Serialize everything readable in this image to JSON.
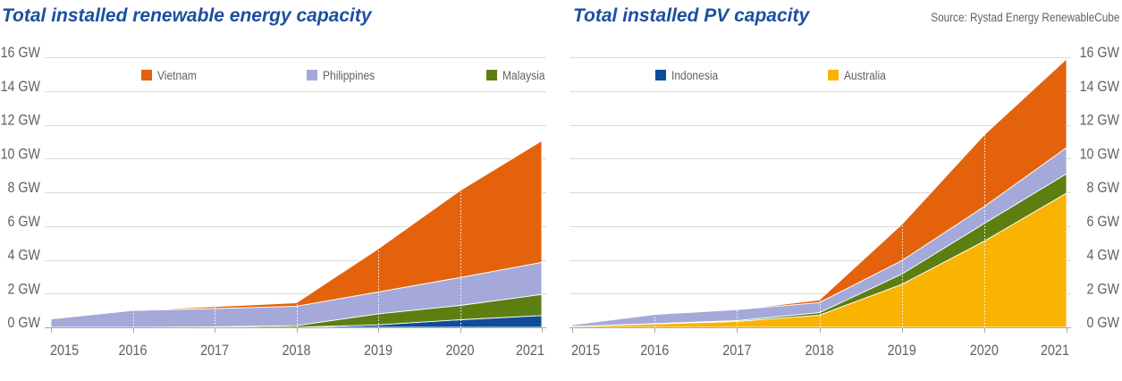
{
  "source": "Source: Rystad Energy RenewableCube",
  "style": {
    "title_color": "#1d4f9f",
    "text_color": "#606163",
    "grid_color": "#d9d9d9",
    "axis_color": "#a8a8a8",
    "area_edge_color": "#ffffff",
    "background": "#ffffff"
  },
  "series_colors": {
    "Vietnam": "#e4620c",
    "Philippines": "#a4a9d9",
    "Malaysia": "#5d7f12",
    "Indonesia": "#0d4c99",
    "Australia": "#f9b300"
  },
  "chart_data": [
    {
      "type": "area",
      "stacked": true,
      "title": "Total installed renewable energy capacity",
      "x": [
        2015,
        2016,
        2017,
        2018,
        2019,
        2020,
        2021
      ],
      "ylim": [
        0,
        16
      ],
      "y_ticks": [
        0,
        2,
        4,
        6,
        8,
        10,
        12,
        14,
        16
      ],
      "y_tick_labels": [
        "0 GW",
        "2 GW",
        "4 GW",
        "6 GW",
        "8 GW",
        "10 GW",
        "12 GW",
        "14 GW",
        "16 GW"
      ],
      "y_axis_position": "left",
      "grid": true,
      "legend_placement": "top",
      "legend": [
        "Vietnam",
        "Philippines",
        "Malaysia"
      ],
      "series": [
        {
          "name": "Indonesia",
          "values": [
            0,
            0,
            0,
            0,
            0.15,
            0.45,
            0.7
          ]
        },
        {
          "name": "Malaysia",
          "values": [
            0,
            0,
            0.03,
            0.1,
            0.65,
            0.85,
            1.25
          ]
        },
        {
          "name": "Philippines",
          "values": [
            0.5,
            1.0,
            1.08,
            1.15,
            1.3,
            1.65,
            1.9
          ]
        },
        {
          "name": "Vietnam",
          "values": [
            0,
            0,
            0.12,
            0.2,
            2.55,
            5.15,
            7.2
          ]
        }
      ]
    },
    {
      "type": "area",
      "stacked": true,
      "title": "Total installed PV capacity",
      "x": [
        2015,
        2016,
        2017,
        2018,
        2019,
        2020,
        2021
      ],
      "ylim": [
        0,
        16
      ],
      "y_ticks": [
        0,
        2,
        4,
        6,
        8,
        10,
        12,
        14,
        16
      ],
      "y_tick_labels": [
        "0 GW",
        "2 GW",
        "4 GW",
        "6 GW",
        "8 GW",
        "10 GW",
        "12 GW",
        "14 GW",
        "16 GW"
      ],
      "y_axis_position": "right",
      "grid": true,
      "legend_placement": "top",
      "legend": [
        "Indonesia",
        "Australia"
      ],
      "series": [
        {
          "name": "Australia",
          "values": [
            0.05,
            0.2,
            0.35,
            0.72,
            2.55,
            5.1,
            7.95
          ]
        },
        {
          "name": "Malaysia",
          "values": [
            0,
            0.02,
            0.05,
            0.15,
            0.6,
            1.05,
            1.15
          ]
        },
        {
          "name": "Philippines",
          "values": [
            0.1,
            0.55,
            0.65,
            0.6,
            0.8,
            1.0,
            1.55
          ]
        },
        {
          "name": "Vietnam",
          "values": [
            0,
            0,
            0,
            0.15,
            2.15,
            4.25,
            5.25
          ]
        }
      ]
    }
  ]
}
